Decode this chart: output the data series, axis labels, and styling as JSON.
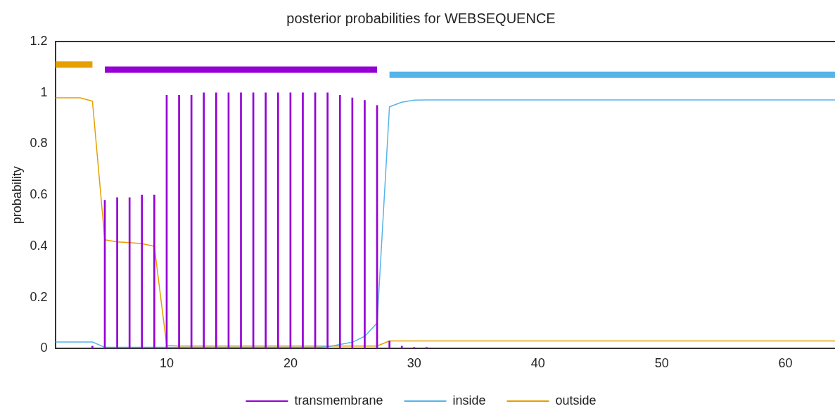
{
  "chart_data": {
    "type": "line",
    "title": "posterior probabilities for WEBSEQUENCE",
    "ylabel": "probability",
    "xlim": [
      1,
      64
    ],
    "ylim": [
      0,
      1.2
    ],
    "xticks": [
      10,
      20,
      30,
      40,
      50,
      60
    ],
    "yticks": [
      0,
      0.2,
      0.4,
      0.6,
      0.8,
      1,
      1.2
    ],
    "grid": false,
    "legend": "bottom",
    "marker": "none",
    "line_style": "solid",
    "series": [
      {
        "name": "transmembrane",
        "type": "bar",
        "color": "#9400d3",
        "x": [
          4,
          5,
          6,
          7,
          8,
          9,
          10,
          11,
          12,
          13,
          14,
          15,
          16,
          17,
          18,
          19,
          20,
          21,
          22,
          23,
          24,
          25,
          26,
          27,
          28,
          29,
          30,
          31
        ],
        "values": [
          0.01,
          0.58,
          0.59,
          0.59,
          0.6,
          0.6,
          0.99,
          0.99,
          0.99,
          1,
          1,
          1,
          1,
          1,
          1,
          1,
          1,
          1,
          1,
          1,
          0.99,
          0.98,
          0.97,
          0.95,
          0.03,
          0.01,
          0.005,
          0.005
        ]
      },
      {
        "name": "inside",
        "color": "#56b4e9",
        "x": [
          1,
          2,
          3,
          4,
          5,
          22,
          23,
          24,
          25,
          26,
          27,
          28,
          29,
          30,
          31,
          64
        ],
        "values": [
          0.026,
          0.026,
          0.026,
          0.026,
          0.005,
          0.005,
          0.007,
          0.016,
          0.025,
          0.048,
          0.1,
          0.945,
          0.963,
          0.971,
          0.972,
          0.972
        ]
      },
      {
        "name": "outside",
        "color": "#e69f00",
        "x": [
          1,
          2,
          3,
          4,
          5,
          6,
          7,
          8,
          9,
          10,
          11,
          27,
          28,
          64
        ],
        "values": [
          0.98,
          0.98,
          0.98,
          0.967,
          0.425,
          0.417,
          0.414,
          0.41,
          0.4,
          0.013,
          0.01,
          0.01,
          0.03,
          0.03
        ]
      },
      {
        "color": "#e69f00",
        "x": [
          1,
          4
        ],
        "values": [
          1.11,
          1.11
        ]
      },
      {
        "color": "#9400d3",
        "x": [
          5,
          27
        ],
        "values": [
          1.09,
          1.09
        ]
      },
      {
        "color": "#56b4e9",
        "x": [
          28,
          64
        ],
        "values": [
          1.07,
          1.07
        ]
      }
    ]
  }
}
